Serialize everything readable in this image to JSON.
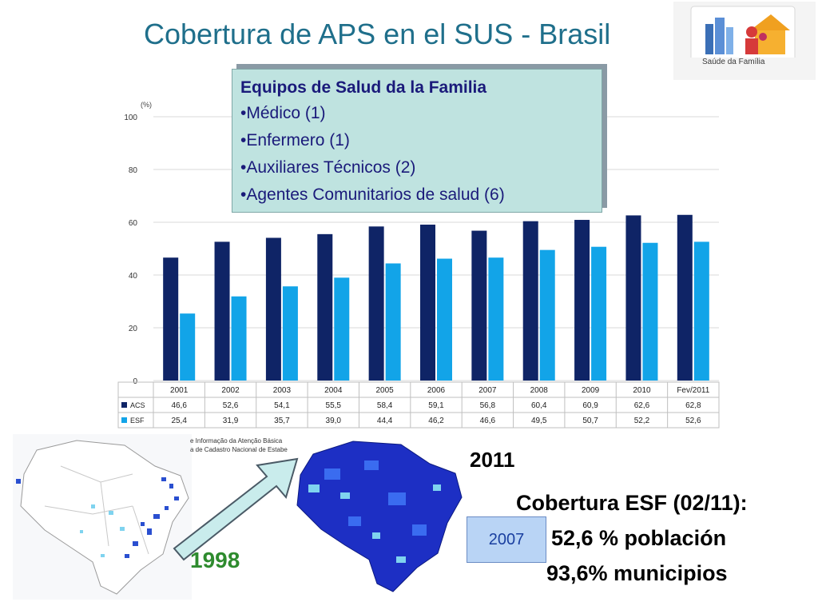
{
  "title": "Cobertura de APS en el SUS - Brasil",
  "logo": {
    "caption": "Saúde da Família",
    "icon": "family-house-logo-icon"
  },
  "team_box": {
    "heading": "Equipos de Salud da la Familia",
    "items": [
      "•Médico (1)",
      "•Enfermero (1)",
      "•Auxiliares Técnicos (2)",
      "•Agentes Comunitarios de salud (6)"
    ]
  },
  "maps": {
    "source_lines": [
      "e Informação da Atenção Básica",
      "a de Cadastro Nacional de Estabe"
    ],
    "year_1998": "1998",
    "year_2011": "2011",
    "badge_2007": "2007"
  },
  "coverage": {
    "title": "Cobertura ESF (02/11):",
    "population": "52,6 % población",
    "municipalities": "93,6% municipios"
  },
  "colors": {
    "acs": "#0f2466",
    "esf": "#12a4e8",
    "title": "#1f6f8b"
  },
  "chart_data": {
    "type": "bar",
    "unit_label": "(%)",
    "categories": [
      "2001",
      "2002",
      "2003",
      "2004",
      "2005",
      "2006",
      "2007",
      "2008",
      "2009",
      "2010",
      "Fev/2011"
    ],
    "ylim": [
      0,
      100
    ],
    "yticks": [
      0,
      20,
      40,
      60,
      80,
      100
    ],
    "grid": true,
    "series": [
      {
        "name": "ACS",
        "values": [
          46.6,
          52.6,
          54.1,
          55.5,
          58.4,
          59.1,
          56.8,
          60.4,
          60.9,
          62.6,
          62.8
        ],
        "labels": [
          "46,6",
          "52,6",
          "54,1",
          "55,5",
          "58,4",
          "59,1",
          "56,8",
          "60,4",
          "60,9",
          "62,6",
          "62,8"
        ]
      },
      {
        "name": "ESF",
        "values": [
          25.4,
          31.9,
          35.7,
          39.0,
          44.4,
          46.2,
          46.6,
          49.5,
          50.7,
          52.2,
          52.6
        ],
        "labels": [
          "25,4",
          "31,9",
          "35,7",
          "39,0",
          "44,4",
          "46,2",
          "46,6",
          "49,5",
          "50,7",
          "52,2",
          "52,6"
        ]
      }
    ]
  }
}
